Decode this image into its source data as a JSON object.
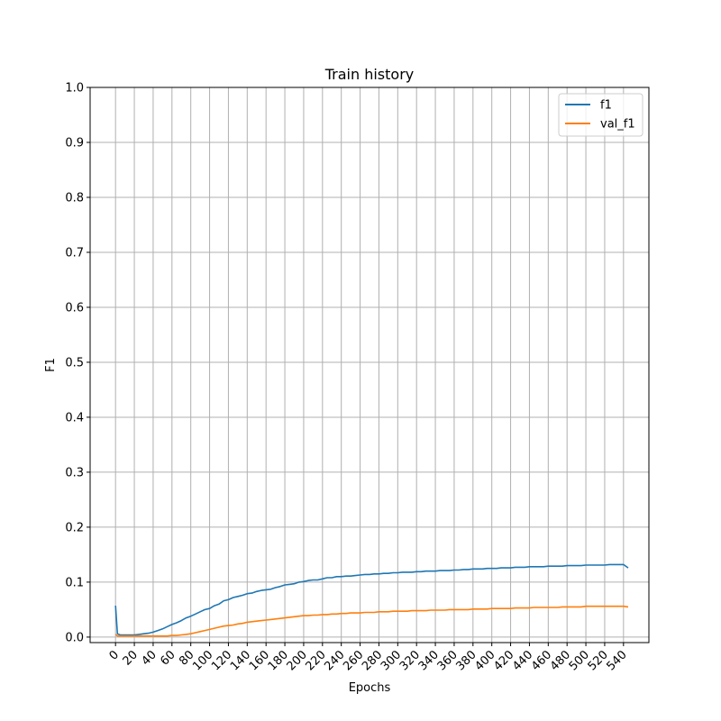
{
  "chart_data": {
    "type": "line",
    "title": "Train history",
    "xlabel": "Epochs",
    "ylabel": "F1",
    "xlim": [
      -27,
      567
    ],
    "ylim": [
      -0.01,
      1.0
    ],
    "xticks": [
      0,
      20,
      40,
      60,
      80,
      100,
      120,
      140,
      160,
      180,
      200,
      220,
      240,
      260,
      280,
      300,
      320,
      340,
      360,
      380,
      400,
      420,
      440,
      460,
      480,
      500,
      520,
      540
    ],
    "yticks": [
      0.0,
      0.1,
      0.2,
      0.3,
      0.4,
      0.5,
      0.6,
      0.7,
      0.8,
      0.9,
      1.0
    ],
    "ytick_labels": [
      "0.0",
      "0.1",
      "0.2",
      "0.3",
      "0.4",
      "0.5",
      "0.6",
      "0.7",
      "0.8",
      "0.9",
      "1.0"
    ],
    "grid": true,
    "legend_position": "top-right",
    "series": [
      {
        "name": "f1",
        "color": "#1f77b4",
        "x": [
          0,
          2,
          5,
          10,
          15,
          20,
          25,
          30,
          35,
          40,
          45,
          50,
          55,
          60,
          65,
          70,
          75,
          80,
          85,
          90,
          95,
          100,
          105,
          110,
          115,
          120,
          125,
          130,
          135,
          140,
          145,
          150,
          155,
          160,
          165,
          170,
          175,
          180,
          185,
          190,
          195,
          200,
          205,
          210,
          215,
          220,
          225,
          230,
          235,
          240,
          245,
          250,
          255,
          260,
          265,
          270,
          275,
          280,
          285,
          290,
          295,
          300,
          305,
          310,
          315,
          320,
          325,
          330,
          335,
          340,
          345,
          350,
          355,
          360,
          365,
          370,
          375,
          380,
          385,
          390,
          395,
          400,
          405,
          410,
          415,
          420,
          425,
          430,
          435,
          440,
          445,
          450,
          455,
          460,
          465,
          470,
          475,
          480,
          485,
          490,
          495,
          500,
          505,
          510,
          515,
          520,
          525,
          530,
          535,
          540,
          545
        ],
        "y": [
          0.057,
          0.006,
          0.004,
          0.004,
          0.004,
          0.004,
          0.005,
          0.006,
          0.007,
          0.009,
          0.012,
          0.015,
          0.019,
          0.023,
          0.026,
          0.03,
          0.035,
          0.038,
          0.042,
          0.046,
          0.05,
          0.052,
          0.057,
          0.06,
          0.066,
          0.068,
          0.072,
          0.074,
          0.076,
          0.079,
          0.08,
          0.083,
          0.085,
          0.086,
          0.087,
          0.09,
          0.092,
          0.095,
          0.096,
          0.097,
          0.1,
          0.101,
          0.103,
          0.104,
          0.104,
          0.106,
          0.108,
          0.108,
          0.11,
          0.11,
          0.111,
          0.111,
          0.112,
          0.113,
          0.114,
          0.114,
          0.115,
          0.115,
          0.116,
          0.116,
          0.117,
          0.117,
          0.118,
          0.118,
          0.118,
          0.119,
          0.119,
          0.12,
          0.12,
          0.12,
          0.121,
          0.121,
          0.121,
          0.122,
          0.122,
          0.123,
          0.123,
          0.124,
          0.124,
          0.124,
          0.125,
          0.125,
          0.125,
          0.126,
          0.126,
          0.126,
          0.127,
          0.127,
          0.127,
          0.128,
          0.128,
          0.128,
          0.128,
          0.129,
          0.129,
          0.129,
          0.129,
          0.13,
          0.13,
          0.13,
          0.13,
          0.131,
          0.131,
          0.131,
          0.131,
          0.131,
          0.132,
          0.132,
          0.132,
          0.132,
          0.126
        ]
      },
      {
        "name": "val_f1",
        "color": "#ff7f0e",
        "x": [
          0,
          2,
          5,
          10,
          15,
          20,
          25,
          30,
          35,
          40,
          45,
          50,
          55,
          60,
          65,
          70,
          75,
          80,
          85,
          90,
          95,
          100,
          105,
          110,
          115,
          120,
          125,
          130,
          135,
          140,
          145,
          150,
          155,
          160,
          165,
          170,
          175,
          180,
          185,
          190,
          195,
          200,
          205,
          210,
          215,
          220,
          225,
          230,
          235,
          240,
          245,
          250,
          255,
          260,
          265,
          270,
          275,
          280,
          285,
          290,
          295,
          300,
          305,
          310,
          315,
          320,
          325,
          330,
          335,
          340,
          345,
          350,
          355,
          360,
          365,
          370,
          375,
          380,
          385,
          390,
          395,
          400,
          405,
          410,
          415,
          420,
          425,
          430,
          435,
          440,
          445,
          450,
          455,
          460,
          465,
          470,
          475,
          480,
          485,
          490,
          495,
          500,
          505,
          510,
          515,
          520,
          525,
          530,
          535,
          540,
          545
        ],
        "y": [
          0.005,
          0.002,
          0.002,
          0.002,
          0.002,
          0.002,
          0.002,
          0.002,
          0.002,
          0.002,
          0.002,
          0.002,
          0.002,
          0.003,
          0.003,
          0.004,
          0.005,
          0.006,
          0.008,
          0.01,
          0.012,
          0.014,
          0.016,
          0.018,
          0.02,
          0.021,
          0.022,
          0.024,
          0.025,
          0.027,
          0.028,
          0.029,
          0.03,
          0.031,
          0.032,
          0.033,
          0.034,
          0.035,
          0.036,
          0.037,
          0.038,
          0.039,
          0.039,
          0.04,
          0.04,
          0.041,
          0.041,
          0.042,
          0.042,
          0.043,
          0.043,
          0.044,
          0.044,
          0.044,
          0.045,
          0.045,
          0.045,
          0.046,
          0.046,
          0.046,
          0.047,
          0.047,
          0.047,
          0.047,
          0.048,
          0.048,
          0.048,
          0.048,
          0.049,
          0.049,
          0.049,
          0.049,
          0.05,
          0.05,
          0.05,
          0.05,
          0.05,
          0.051,
          0.051,
          0.051,
          0.051,
          0.052,
          0.052,
          0.052,
          0.052,
          0.052,
          0.053,
          0.053,
          0.053,
          0.053,
          0.054,
          0.054,
          0.054,
          0.054,
          0.054,
          0.054,
          0.055,
          0.055,
          0.055,
          0.055,
          0.055,
          0.056,
          0.056,
          0.056,
          0.056,
          0.056,
          0.056,
          0.056,
          0.056,
          0.056,
          0.055
        ]
      }
    ]
  }
}
